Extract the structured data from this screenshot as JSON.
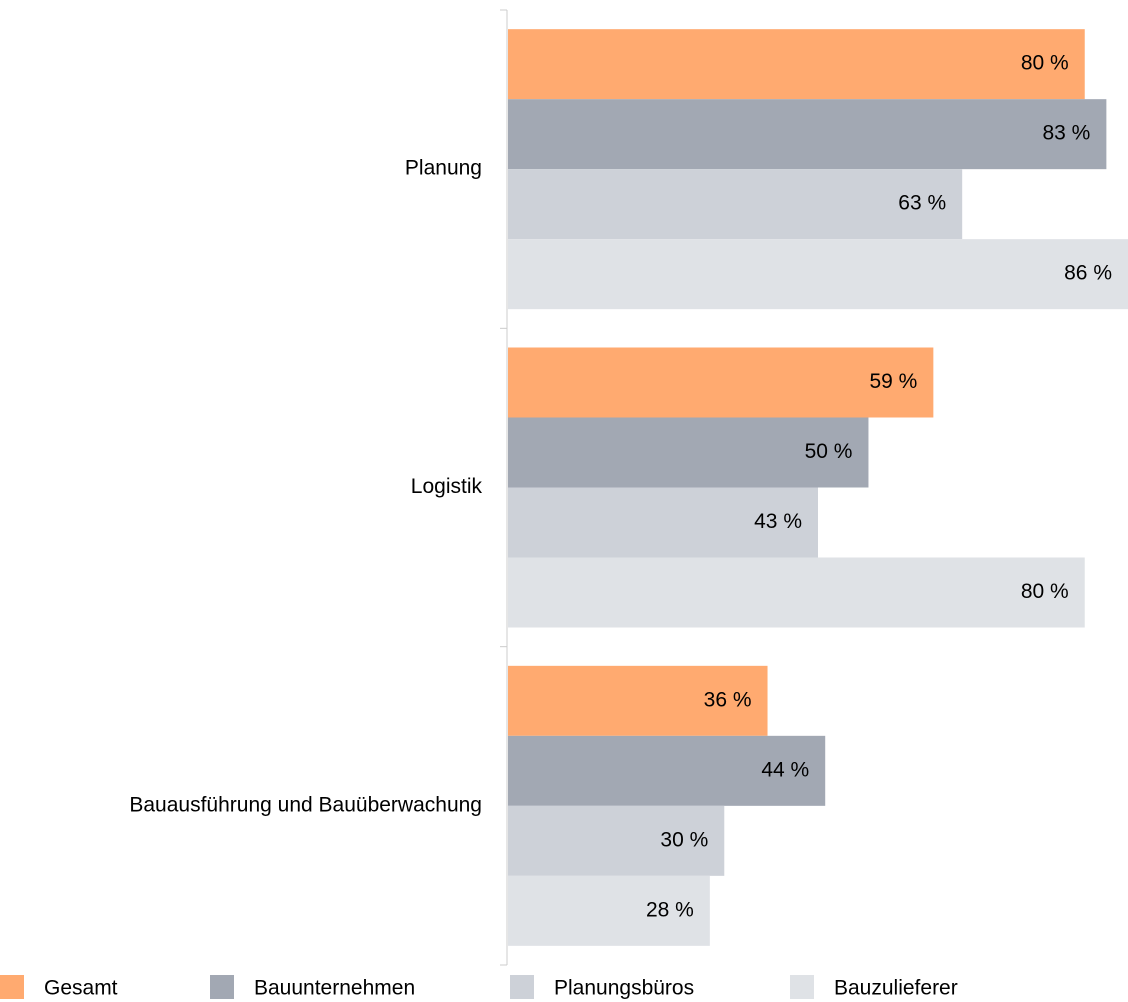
{
  "chart_data": {
    "type": "bar",
    "orientation": "horizontal",
    "categories": [
      "Planung",
      "Logistik",
      "Bauausführung und Bauüberwachung"
    ],
    "series": [
      {
        "name": "Gesamt",
        "color": "#ffaa70",
        "values": [
          80,
          59,
          36
        ],
        "value_labels": [
          "80 %",
          "59 %",
          "36 %"
        ]
      },
      {
        "name": "Bauunternehmen",
        "color": "#a2a8b3",
        "values": [
          83,
          50,
          44
        ],
        "value_labels": [
          "83 %",
          "50 %",
          "44 %"
        ]
      },
      {
        "name": "Planungsbüros",
        "color": "#cdd1d8",
        "values": [
          63,
          43,
          30
        ],
        "value_labels": [
          "63 %",
          "43 %",
          "30 %"
        ]
      },
      {
        "name": "Bauzulieferer",
        "color": "#dfe2e6",
        "values": [
          86,
          80,
          28
        ],
        "value_labels": [
          "86 %",
          "80 %",
          "28 %"
        ]
      }
    ],
    "legend": "bottom"
  }
}
